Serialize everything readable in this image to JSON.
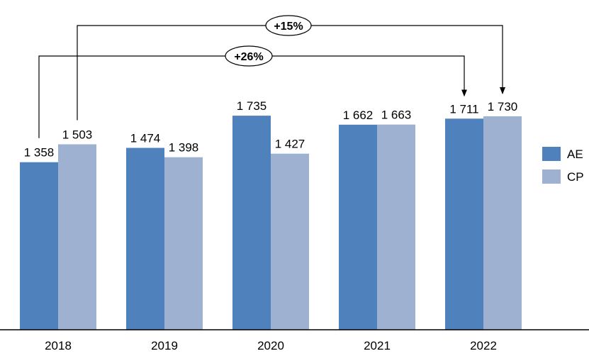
{
  "chart_data": {
    "type": "bar",
    "categories": [
      "2018",
      "2019",
      "2020",
      "2021",
      "2022"
    ],
    "series": [
      {
        "name": "AE",
        "values": [
          1358,
          1474,
          1735,
          1662,
          1711
        ],
        "labels": [
          "1 358",
          "1 474",
          "1 735",
          "1 662",
          "1 711"
        ],
        "color": "#4F81BD"
      },
      {
        "name": "CP",
        "values": [
          1503,
          1398,
          1427,
          1663,
          1730
        ],
        "labels": [
          "1 503",
          "1 398",
          "1 427",
          "1 663",
          "1 730"
        ],
        "color": "#9FB1D0"
      }
    ],
    "title": "",
    "xlabel": "",
    "ylabel": "",
    "ylim": [
      0,
      2300
    ],
    "grid": false,
    "legend": "right",
    "annotations": [
      {
        "text": "+15%",
        "from": "CP 2018",
        "to": "CP 2022"
      },
      {
        "text": "+26%",
        "from": "AE 2018",
        "to": "AE 2022"
      }
    ]
  }
}
